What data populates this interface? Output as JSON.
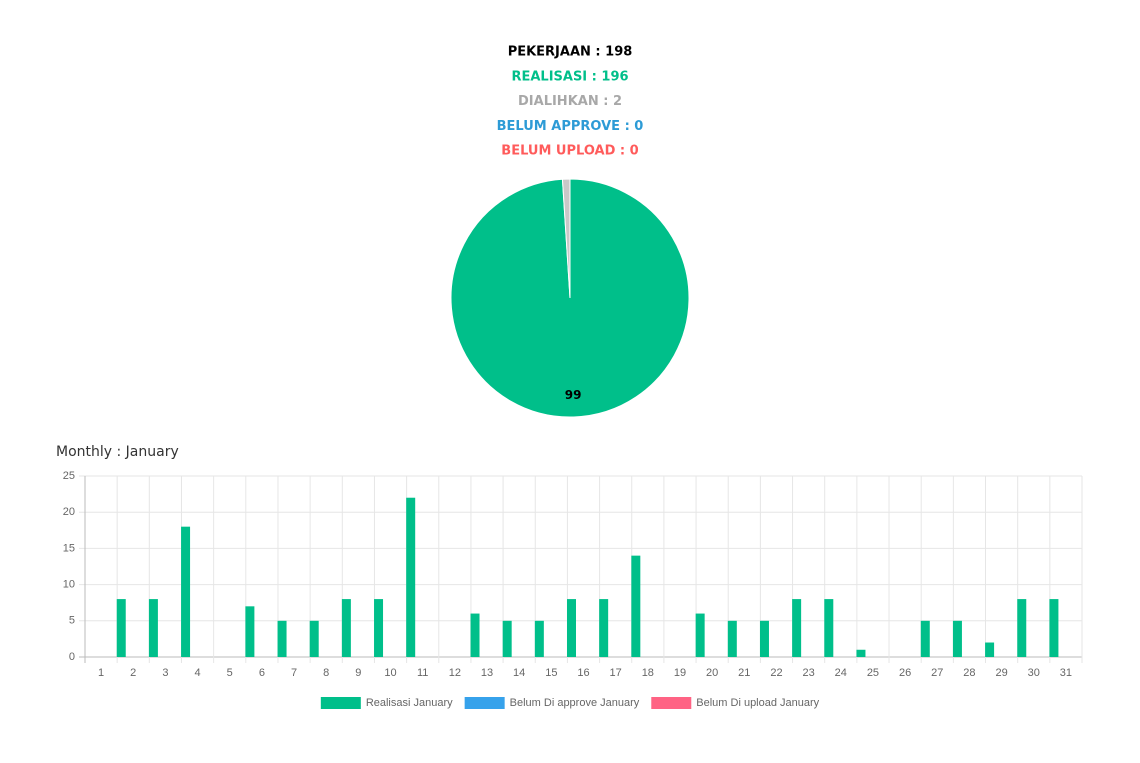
{
  "header": {
    "lines": [
      {
        "text": "PEKERJAAN : 198",
        "color": "#000000"
      },
      {
        "text": "REALISASI : 196",
        "color": "#00bf8a"
      },
      {
        "text": "DIALIHKAN : 2",
        "color": "#a8a8a8"
      },
      {
        "text": "BELUM APPROVE : 0",
        "color": "#2d9bd6"
      },
      {
        "text": "BELUM UPLOAD : 0",
        "color": "#ff5b5b"
      }
    ]
  },
  "chart_data": [
    {
      "type": "pie",
      "values": [
        98.99,
        1.01,
        0,
        0
      ],
      "value_labels": [
        "99",
        null,
        null,
        null
      ],
      "colors": [
        "#00bf8a",
        "#c8c8c8",
        "#36a2eb",
        "#ff6384"
      ]
    },
    {
      "type": "bar",
      "title": "Monthly : January",
      "categories": [
        "1",
        "2",
        "3",
        "4",
        "5",
        "6",
        "7",
        "8",
        "9",
        "10",
        "11",
        "12",
        "13",
        "14",
        "15",
        "16",
        "17",
        "18",
        "19",
        "20",
        "21",
        "22",
        "23",
        "24",
        "25",
        "26",
        "27",
        "28",
        "29",
        "30",
        "31"
      ],
      "series": [
        {
          "name": "Realisasi January",
          "color": "#00bf8a",
          "values": [
            0,
            8,
            8,
            18,
            0,
            7,
            5,
            5,
            8,
            8,
            22,
            0,
            6,
            5,
            5,
            8,
            8,
            14,
            0,
            6,
            5,
            5,
            8,
            8,
            1,
            0,
            5,
            5,
            2,
            8,
            8
          ]
        },
        {
          "name": "Belum Di approve January",
          "color": "#36a2eb",
          "values": [
            0,
            0,
            0,
            0,
            0,
            0,
            0,
            0,
            0,
            0,
            0,
            0,
            0,
            0,
            0,
            0,
            0,
            0,
            0,
            0,
            0,
            0,
            0,
            0,
            0,
            0,
            0,
            0,
            0,
            0,
            0
          ]
        },
        {
          "name": "Belum Di upload January",
          "color": "#ff6384",
          "values": [
            0,
            0,
            0,
            0,
            0,
            0,
            0,
            0,
            0,
            0,
            0,
            0,
            0,
            0,
            0,
            0,
            0,
            0,
            0,
            0,
            0,
            0,
            0,
            0,
            0,
            0,
            0,
            0,
            0,
            0,
            0
          ]
        }
      ],
      "ylim": [
        0,
        25
      ],
      "yticks": [
        0,
        5,
        10,
        15,
        20,
        25
      ],
      "grid": true,
      "legend": "bottom"
    }
  ]
}
